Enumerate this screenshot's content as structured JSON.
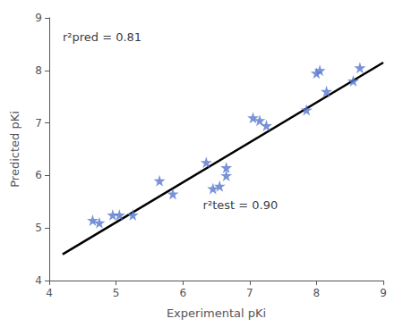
{
  "chart_data": {
    "type": "scatter",
    "xlabel": "Experimental pKi",
    "ylabel": "Predicted pKi",
    "series": [
      {
        "type": "scatter",
        "color": "#5577cc",
        "marker": "star",
        "x": [
          4.65,
          4.75,
          4.95,
          5.05,
          5.25,
          5.65,
          5.85,
          6.35,
          6.45,
          6.55,
          6.65,
          6.65,
          7.05,
          7.15,
          7.25,
          7.85,
          8.0,
          8.05,
          8.15,
          8.55,
          8.65
        ],
        "values": [
          5.15,
          5.1,
          5.25,
          5.25,
          5.25,
          5.9,
          5.65,
          6.25,
          5.75,
          5.8,
          6.0,
          6.15,
          7.1,
          7.05,
          6.95,
          7.25,
          7.95,
          8.0,
          7.6,
          7.8,
          8.05
        ]
      },
      {
        "type": "line",
        "color": "#000000",
        "x": [
          4.2,
          9.0
        ],
        "values": [
          4.5,
          8.15
        ]
      }
    ],
    "annotations": [
      {
        "text": "r²pred = 0.81",
        "x": 4.2,
        "y": 8.75
      },
      {
        "text": "r²test = 0.90",
        "x": 6.3,
        "y": 5.55
      }
    ],
    "xlim": [
      4.0,
      9.0
    ],
    "ylim": [
      4.0,
      9.0
    ],
    "xticks": [
      4,
      5,
      6,
      7,
      8,
      9
    ],
    "yticks": [
      4,
      5,
      6,
      7,
      8,
      9
    ],
    "grid": false
  }
}
